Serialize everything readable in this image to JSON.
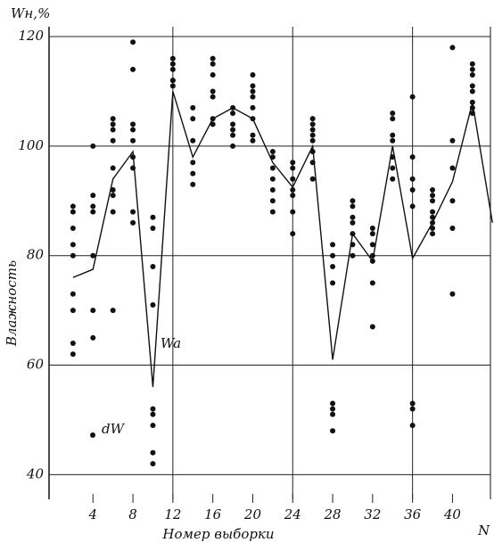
{
  "chart_data": {
    "type": "scatter",
    "title": "Wн,%",
    "y_label": "Влажность",
    "x_label": "Номер выборки",
    "x_axis_symbol": "N",
    "xlim": [
      -0.4,
      43.8
    ],
    "ylim": [
      35.5,
      121.8
    ],
    "xticks": [
      4,
      8,
      12,
      16,
      20,
      24,
      28,
      32,
      36,
      40
    ],
    "yticks": [
      40,
      60,
      80,
      100,
      120
    ],
    "xgrid": [
      12,
      24,
      36
    ],
    "grid": true,
    "series": [
      {
        "name": "dW",
        "type": "scatter",
        "color": "#111111",
        "x": [
          2,
          2,
          2,
          2,
          2,
          2,
          2,
          2,
          2,
          4,
          4,
          4,
          4,
          4,
          4,
          4,
          6,
          6,
          6,
          6,
          6,
          6,
          6,
          6,
          6,
          8,
          8,
          8,
          8,
          8,
          8,
          8,
          8,
          8,
          10,
          10,
          10,
          10,
          10,
          10,
          10,
          10,
          10,
          12,
          12,
          12,
          12,
          12,
          12,
          14,
          14,
          14,
          14,
          14,
          14,
          16,
          16,
          16,
          16,
          16,
          16,
          16,
          18,
          18,
          18,
          18,
          18,
          18,
          20,
          20,
          20,
          20,
          20,
          20,
          20,
          20,
          22,
          22,
          22,
          22,
          22,
          22,
          22,
          24,
          24,
          24,
          24,
          24,
          24,
          24,
          26,
          26,
          26,
          26,
          26,
          26,
          26,
          26,
          28,
          28,
          28,
          28,
          28,
          28,
          28,
          28,
          30,
          30,
          30,
          30,
          30,
          30,
          30,
          32,
          32,
          32,
          32,
          32,
          32,
          32,
          34,
          34,
          34,
          34,
          34,
          34,
          34,
          36,
          36,
          36,
          36,
          36,
          36,
          36,
          36,
          38,
          38,
          38,
          38,
          38,
          38,
          38,
          38,
          40,
          40,
          40,
          40,
          40,
          40,
          42,
          42,
          42,
          42,
          42,
          42,
          42,
          42
        ],
        "values": [
          89,
          88,
          85,
          82,
          80,
          73,
          70,
          64,
          62,
          100,
          91,
          89,
          88,
          80,
          70,
          65,
          105,
          104,
          103,
          101,
          96,
          92,
          91,
          88,
          70,
          119,
          114,
          104,
          103,
          101,
          98,
          96,
          88,
          86,
          87,
          85,
          78,
          71,
          52,
          51,
          49,
          44,
          42,
          116,
          115,
          114,
          112,
          112,
          111,
          107,
          105,
          101,
          97,
          95,
          93,
          116,
          115,
          113,
          110,
          109,
          105,
          104,
          107,
          106,
          104,
          103,
          102,
          100,
          113,
          111,
          110,
          109,
          107,
          105,
          102,
          101,
          99,
          98,
          96,
          94,
          92,
          90,
          88,
          97,
          96,
          94,
          92,
          91,
          88,
          84,
          105,
          104,
          103,
          102,
          101,
          99,
          97,
          94,
          82,
          80,
          78,
          75,
          53,
          52,
          51,
          48,
          90,
          89,
          87,
          86,
          84,
          82,
          80,
          85,
          84,
          82,
          80,
          79,
          75,
          67,
          106,
          105,
          102,
          101,
          98,
          96,
          94,
          109,
          98,
          94,
          92,
          89,
          53,
          52,
          49,
          92,
          91,
          90,
          88,
          87,
          86,
          85,
          84,
          118,
          101,
          96,
          90,
          85,
          73,
          115,
          114,
          113,
          111,
          110,
          108,
          107,
          106
        ]
      },
      {
        "name": "Wa",
        "type": "line",
        "color": "#111111",
        "x": [
          2,
          4,
          6,
          8,
          10,
          12,
          14,
          16,
          18,
          20,
          22,
          24,
          26,
          28,
          30,
          32,
          34,
          36,
          38,
          40,
          42,
          44
        ],
        "values": [
          76,
          77.5,
          94,
          99,
          56,
          110,
          98,
          105,
          107,
          105,
          97,
          92.5,
          100,
          61,
          84,
          79,
          100,
          79.5,
          86,
          93.5,
          108,
          86
        ]
      }
    ]
  }
}
